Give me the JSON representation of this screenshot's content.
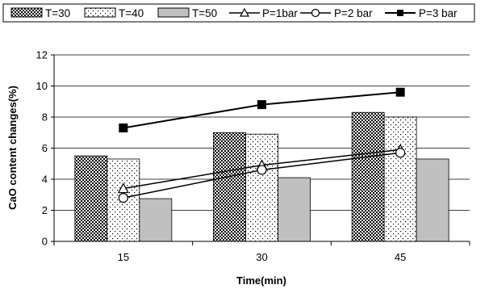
{
  "chart_data": {
    "type": "bar",
    "xlabel": "Time(min)",
    "ylabel": "CaO content changes(%)",
    "ylim": [
      0,
      12
    ],
    "yticks": [
      0,
      2,
      4,
      6,
      8,
      10,
      12
    ],
    "categories": [
      "15",
      "30",
      "45"
    ],
    "grid": "horizontal",
    "legend_position": "top",
    "bar_series": [
      {
        "name": "T=30",
        "values": [
          5.5,
          7.0,
          8.3
        ],
        "pattern": "checker"
      },
      {
        "name": "T=40",
        "values": [
          5.3,
          6.9,
          8.0
        ],
        "pattern": "dots"
      },
      {
        "name": "T=50",
        "values": [
          2.75,
          4.1,
          5.3
        ],
        "pattern": "gray",
        "color": "#c0c0c0"
      }
    ],
    "line_series": [
      {
        "name": "P=1bar",
        "values": [
          3.4,
          4.9,
          5.9
        ],
        "marker": "triangle-open"
      },
      {
        "name": "P=2 bar",
        "values": [
          2.8,
          4.6,
          5.7
        ],
        "marker": "circle-open"
      },
      {
        "name": "P=3 bar",
        "values": [
          7.3,
          8.8,
          9.6
        ],
        "marker": "square-filled"
      }
    ]
  }
}
